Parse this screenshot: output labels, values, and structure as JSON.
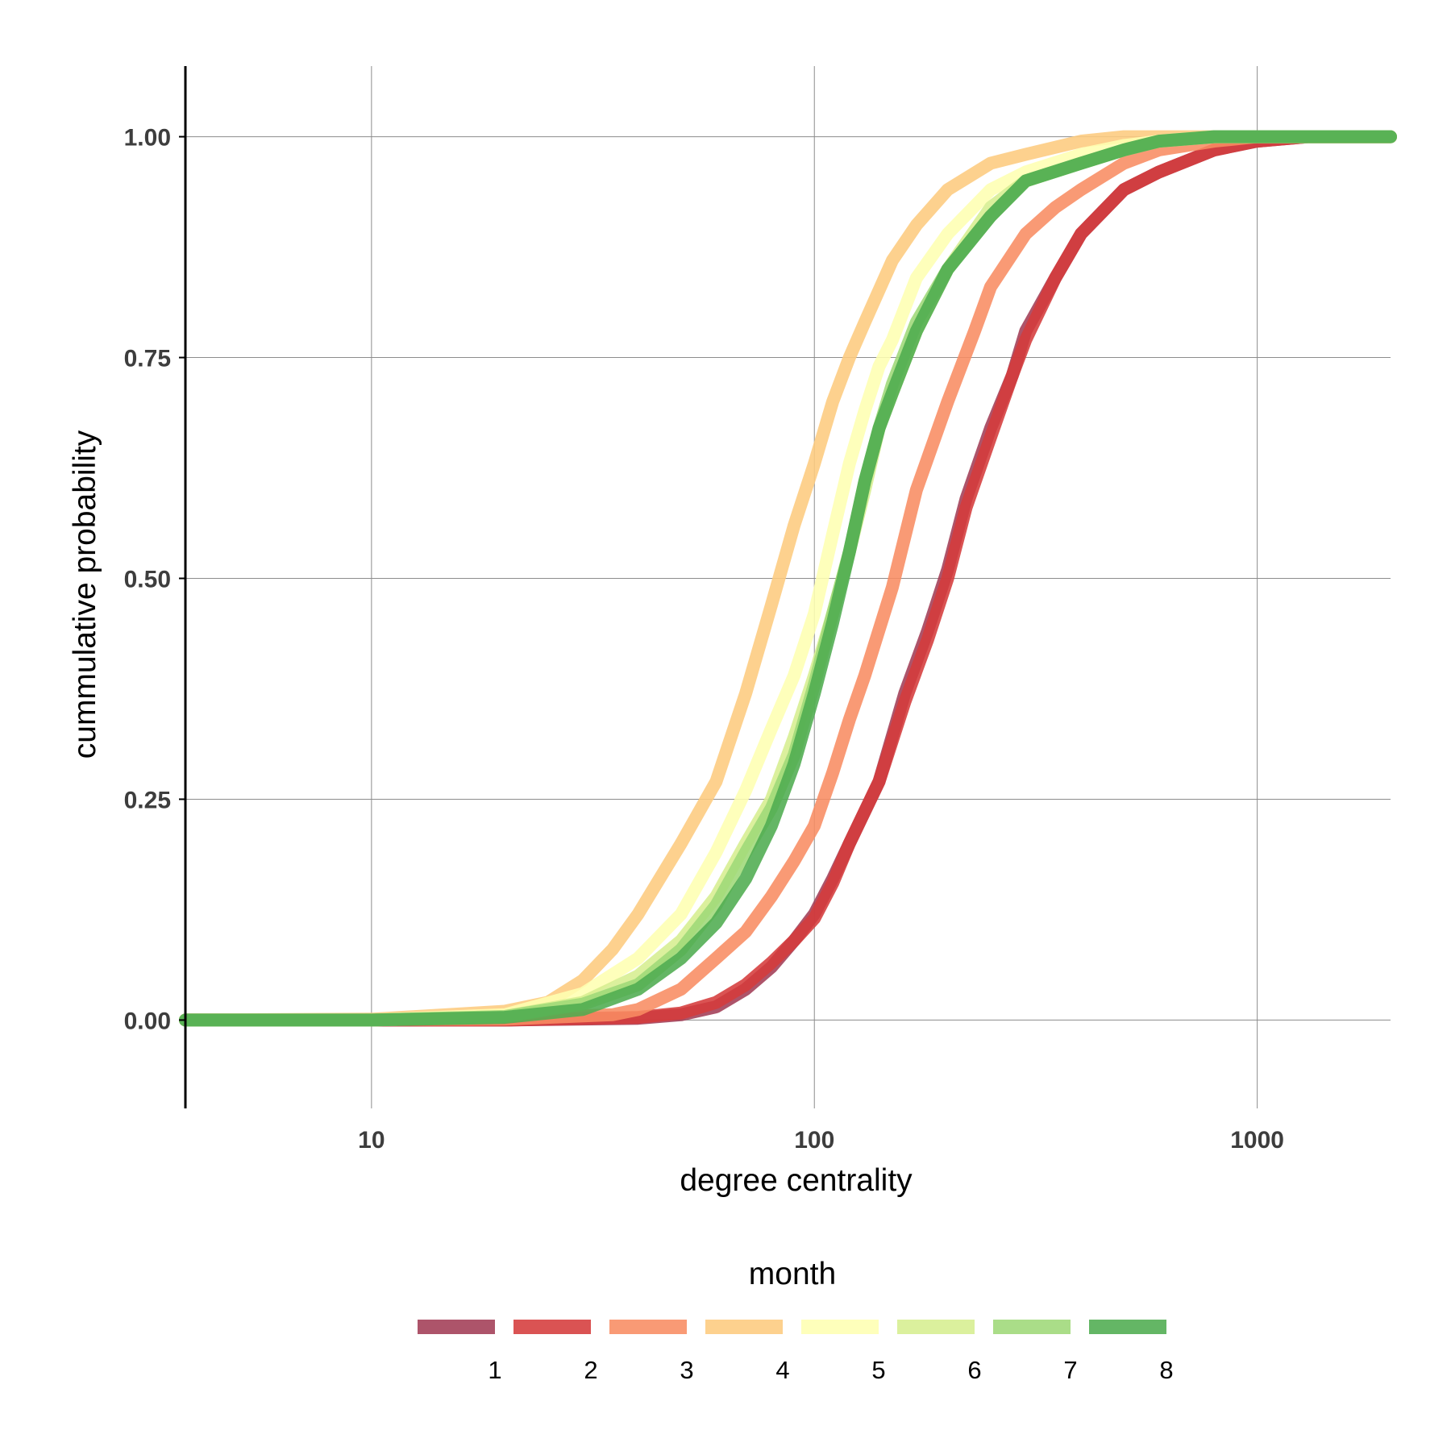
{
  "chart_data": {
    "type": "line",
    "xlabel": "degree centrality",
    "ylabel": "cummulative probability",
    "x_scale": "log10",
    "xlim": [
      3.8,
      2000
    ],
    "ylim": [
      -0.1,
      1.1
    ],
    "x_ticks": [
      {
        "value": 10,
        "label": "10"
      },
      {
        "value": 100,
        "label": "100"
      },
      {
        "value": 1000,
        "label": "1000"
      }
    ],
    "y_ticks": [
      {
        "value": 0,
        "label": "0.00"
      },
      {
        "value": 0.25,
        "label": "0.25"
      },
      {
        "value": 0.5,
        "label": "0.50"
      },
      {
        "value": 0.75,
        "label": "0.75"
      },
      {
        "value": 1,
        "label": "1.00"
      }
    ],
    "grid": true,
    "legend": {
      "title": "month",
      "position": "bottom"
    },
    "series": [
      {
        "name": "1",
        "color": "#a23c55",
        "x": [
          3.8,
          20,
          40,
          50,
          60,
          70,
          80,
          90,
          100,
          110,
          120,
          140,
          160,
          180,
          200,
          220,
          250,
          280,
          300,
          350,
          400,
          500,
          600,
          800,
          1000,
          1300,
          2000
        ],
        "y": [
          0,
          0,
          0.002,
          0.006,
          0.015,
          0.035,
          0.06,
          0.09,
          0.12,
          0.16,
          0.2,
          0.27,
          0.37,
          0.44,
          0.51,
          0.59,
          0.67,
          0.73,
          0.78,
          0.84,
          0.89,
          0.94,
          0.96,
          0.985,
          0.995,
          1,
          1
        ]
      },
      {
        "name": "2",
        "color": "#d53b3b",
        "x": [
          3.8,
          20,
          40,
          50,
          60,
          70,
          80,
          90,
          100,
          110,
          120,
          140,
          160,
          180,
          200,
          220,
          250,
          280,
          300,
          350,
          400,
          500,
          600,
          800,
          1000,
          1300,
          2000
        ],
        "y": [
          0,
          0,
          0.003,
          0.008,
          0.02,
          0.04,
          0.065,
          0.09,
          0.115,
          0.155,
          0.2,
          0.27,
          0.36,
          0.43,
          0.5,
          0.58,
          0.66,
          0.73,
          0.77,
          0.84,
          0.89,
          0.94,
          0.96,
          0.985,
          0.995,
          1,
          1
        ]
      },
      {
        "name": "3",
        "color": "#f88c62",
        "x": [
          3.8,
          20,
          35,
          40,
          50,
          60,
          70,
          80,
          90,
          100,
          110,
          120,
          130,
          150,
          170,
          200,
          230,
          250,
          300,
          350,
          400,
          500,
          600,
          800,
          1000,
          1500,
          2000
        ],
        "y": [
          0,
          0.001,
          0.006,
          0.012,
          0.035,
          0.07,
          0.1,
          0.14,
          0.18,
          0.22,
          0.28,
          0.34,
          0.39,
          0.49,
          0.6,
          0.7,
          0.78,
          0.83,
          0.89,
          0.92,
          0.94,
          0.97,
          0.985,
          0.995,
          1,
          1,
          1
        ]
      },
      {
        "name": "4",
        "color": "#fdcb7e",
        "x": [
          3.8,
          10,
          20,
          25,
          30,
          35,
          40,
          50,
          60,
          70,
          80,
          90,
          100,
          110,
          120,
          130,
          150,
          170,
          200,
          250,
          300,
          400,
          500,
          600,
          800,
          1000,
          2000
        ],
        "y": [
          0,
          0.001,
          0.01,
          0.02,
          0.045,
          0.08,
          0.12,
          0.2,
          0.27,
          0.37,
          0.47,
          0.56,
          0.63,
          0.7,
          0.75,
          0.79,
          0.86,
          0.9,
          0.94,
          0.97,
          0.98,
          0.995,
          1,
          1,
          1,
          1,
          1
        ]
      },
      {
        "name": "5",
        "color": "#feffb2",
        "x": [
          3.8,
          10,
          20,
          30,
          40,
          50,
          60,
          70,
          80,
          90,
          100,
          110,
          120,
          130,
          140,
          150,
          170,
          200,
          250,
          300,
          400,
          500,
          600,
          800,
          1000,
          1500,
          2000
        ],
        "y": [
          0,
          0,
          0.006,
          0.03,
          0.07,
          0.12,
          0.19,
          0.26,
          0.33,
          0.39,
          0.46,
          0.55,
          0.63,
          0.69,
          0.74,
          0.77,
          0.84,
          0.89,
          0.94,
          0.96,
          0.98,
          0.99,
          0.995,
          1,
          1,
          1,
          1
        ]
      },
      {
        "name": "6",
        "color": "#d6ee8f",
        "x": [
          3.8,
          10,
          20,
          30,
          40,
          50,
          60,
          70,
          80,
          90,
          100,
          110,
          120,
          130,
          140,
          150,
          170,
          200,
          250,
          300,
          400,
          500,
          600,
          800,
          1000,
          1500,
          2000
        ],
        "y": [
          0,
          0,
          0.004,
          0.02,
          0.05,
          0.09,
          0.14,
          0.2,
          0.25,
          0.32,
          0.39,
          0.46,
          0.53,
          0.6,
          0.67,
          0.71,
          0.78,
          0.85,
          0.92,
          0.95,
          0.97,
          0.985,
          0.995,
          1,
          1,
          1,
          1
        ]
      },
      {
        "name": "7",
        "color": "#9ed877",
        "x": [
          3.8,
          10,
          20,
          30,
          40,
          50,
          60,
          70,
          80,
          90,
          100,
          110,
          120,
          130,
          140,
          150,
          170,
          200,
          250,
          300,
          400,
          500,
          600,
          800,
          1000,
          1500,
          2000
        ],
        "y": [
          0,
          0,
          0.004,
          0.018,
          0.04,
          0.08,
          0.13,
          0.19,
          0.24,
          0.3,
          0.38,
          0.46,
          0.53,
          0.61,
          0.67,
          0.72,
          0.79,
          0.85,
          0.91,
          0.95,
          0.97,
          0.985,
          0.995,
          1,
          1,
          1,
          1
        ]
      },
      {
        "name": "8",
        "color": "#4fac50",
        "x": [
          3.8,
          10,
          20,
          30,
          40,
          50,
          60,
          70,
          80,
          90,
          100,
          110,
          120,
          130,
          140,
          150,
          170,
          200,
          250,
          300,
          400,
          500,
          600,
          800,
          1000,
          1500,
          2000
        ],
        "y": [
          0,
          0,
          0.003,
          0.012,
          0.035,
          0.07,
          0.11,
          0.16,
          0.22,
          0.29,
          0.37,
          0.45,
          0.53,
          0.61,
          0.67,
          0.71,
          0.78,
          0.85,
          0.91,
          0.95,
          0.97,
          0.985,
          0.995,
          1,
          1,
          1,
          1
        ]
      }
    ]
  }
}
